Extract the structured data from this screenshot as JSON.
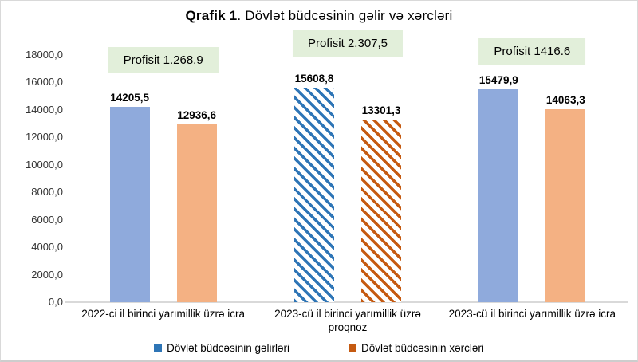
{
  "title": {
    "bold": "Qrafik 1",
    "rest": ". Dövlət büdcəsinin gəlir və xərcləri"
  },
  "chart_data": {
    "type": "bar",
    "title": "Qrafik 1. Dövlət büdcəsinin gəlir və xərcləri",
    "categories": [
      "2022-ci il birinci yarımillik üzrə  icra",
      "2023-cü il birinci yarımillik üzrə proqnoz",
      "2023-cü il birinci yarımillik üzrə icra"
    ],
    "series": [
      {
        "name": "Dövlət büdcəsinin gəlirləri",
        "values": [
          14205.5,
          15608.8,
          15479.9
        ],
        "color": "#8FAADC",
        "hatch_color": "#2E75B6"
      },
      {
        "name": "Dövlət büdcəsinin xərcləri",
        "values": [
          12936.6,
          13301.3,
          14063.3
        ],
        "color": "#F4B183",
        "hatch_color": "#C55A11"
      }
    ],
    "value_labels": [
      [
        "14205,5",
        "12936,6"
      ],
      [
        "15608,8",
        "13301,3"
      ],
      [
        "15479,9",
        "14063,3"
      ]
    ],
    "annotations": [
      "Profisit 1.268.9",
      "Profisit 2.307,5",
      "Profisit 1416.6"
    ],
    "annotation_bg": "#E2EFDA",
    "hatched_groups": [
      1
    ],
    "ylim": [
      0,
      18000
    ],
    "grid": false,
    "legend_position": "bottom",
    "y_ticks": [
      {
        "label": "18000,0",
        "value": 18000
      },
      {
        "label": "16000,0",
        "value": 16000
      },
      {
        "label": "14000,0",
        "value": 14000
      },
      {
        "label": "12000,0",
        "value": 12000
      },
      {
        "label": "10000,0",
        "value": 10000
      },
      {
        "label": "8000,0",
        "value": 8000
      },
      {
        "label": "6000,0",
        "value": 6000
      },
      {
        "label": "4000,0",
        "value": 4000
      },
      {
        "label": "2000,0",
        "value": 2000
      },
      {
        "label": "0,0",
        "value": 0
      }
    ]
  },
  "legend": {
    "items": [
      {
        "label": "Dövlət büdcəsinin gəlirləri",
        "color": "#2E75B6"
      },
      {
        "label": "Dövlət büdcəsinin xərcləri",
        "color": "#C55A11"
      }
    ]
  }
}
